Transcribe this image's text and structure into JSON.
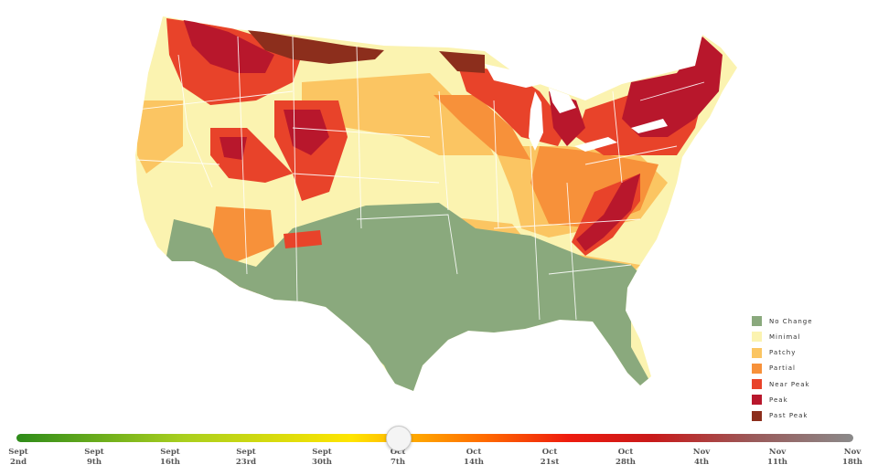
{
  "legend": [
    {
      "label": "No Change",
      "color": "#8aa97d"
    },
    {
      "label": "Minimal",
      "color": "#fbf3b0"
    },
    {
      "label": "Patchy",
      "color": "#fbc562"
    },
    {
      "label": "Partial",
      "color": "#f7913a"
    },
    {
      "label": "Near Peak",
      "color": "#e8432a"
    },
    {
      "label": "Peak",
      "color": "#b8172c"
    },
    {
      "label": "Past Peak",
      "color": "#8c2e1c"
    }
  ],
  "timeline": {
    "ticks": [
      {
        "month": "Sept",
        "day": "2nd"
      },
      {
        "month": "Sept",
        "day": "9th"
      },
      {
        "month": "Sept",
        "day": "16th"
      },
      {
        "month": "Sept",
        "day": "23rd"
      },
      {
        "month": "Sept",
        "day": "30th"
      },
      {
        "month": "Oct",
        "day": "7th"
      },
      {
        "month": "Oct",
        "day": "14th"
      },
      {
        "month": "Oct",
        "day": "21st"
      },
      {
        "month": "Oct",
        "day": "28th"
      },
      {
        "month": "Nov",
        "day": "4th"
      },
      {
        "month": "Nov",
        "day": "11th"
      },
      {
        "month": "Nov",
        "day": "18th"
      }
    ],
    "selected_index": 5
  }
}
